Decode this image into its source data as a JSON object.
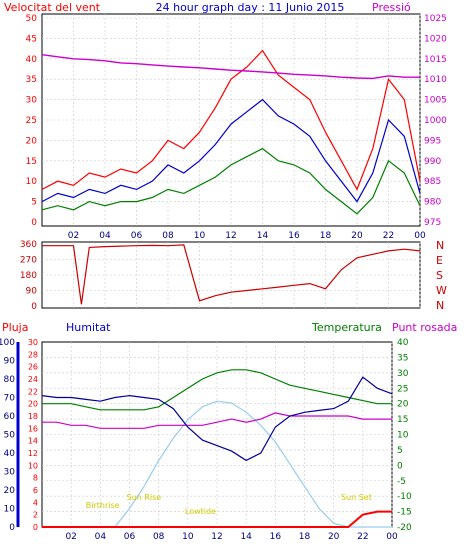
{
  "header": {
    "left_label": "Velocitat del vent",
    "title": "24 hour graph day : 11 Junio 2015",
    "right_label": "Pressió"
  },
  "colors": {
    "wind_max": "#ff0000",
    "wind_avg": "#0000cc",
    "wind_min": "#008000",
    "pressure": "#cc00cc",
    "direction": "#cc0000",
    "humidity": "#000099",
    "temperature": "#008000",
    "dewpoint": "#cc00cc",
    "rain": "#ff0000",
    "solar": "#99ccee",
    "sun_events": "#cccc00",
    "left_axis": "#ff0000",
    "hum_axis": "#0000cc",
    "temp_axis": "#008000"
  },
  "time_axis": {
    "labels": [
      "02",
      "04",
      "06",
      "08",
      "10",
      "12",
      "14",
      "16",
      "18",
      "20",
      "22",
      "00"
    ]
  },
  "chart_data": [
    {
      "type": "line",
      "panel": "wind",
      "x_unit": "hour",
      "xlim": [
        0,
        24
      ],
      "ylabel": "Velocitat del vent",
      "ylim": [
        0,
        50
      ],
      "y_ticks": [
        "0",
        "5",
        "10",
        "15",
        "20",
        "25",
        "30",
        "35",
        "40",
        "45",
        "50"
      ],
      "y2label": "Pressió",
      "y2lim": [
        975,
        1025
      ],
      "y2_ticks": [
        "975",
        "980",
        "985",
        "990",
        "995",
        "1000",
        "1005",
        "1010",
        "1015",
        "1020",
        "1025"
      ],
      "x": [
        0,
        1,
        2,
        3,
        4,
        5,
        6,
        7,
        8,
        9,
        10,
        11,
        12,
        13,
        14,
        15,
        16,
        17,
        18,
        19,
        20,
        21,
        22,
        23,
        24
      ],
      "series": [
        {
          "role": "max",
          "values": [
            8,
            10,
            9,
            12,
            11,
            13,
            12,
            15,
            20,
            18,
            22,
            28,
            35,
            38,
            42,
            36,
            33,
            30,
            22,
            15,
            8,
            18,
            35,
            30,
            10
          ]
        },
        {
          "role": "avg",
          "values": [
            5,
            7,
            6,
            8,
            7,
            9,
            8,
            10,
            14,
            12,
            15,
            19,
            24,
            27,
            30,
            26,
            24,
            21,
            15,
            10,
            5,
            12,
            25,
            21,
            7
          ]
        },
        {
          "role": "min",
          "values": [
            3,
            4,
            3,
            5,
            4,
            5,
            5,
            6,
            8,
            7,
            9,
            11,
            14,
            16,
            18,
            15,
            14,
            12,
            8,
            5,
            2,
            6,
            15,
            12,
            4
          ]
        },
        {
          "role": "pressure",
          "values": [
            1016,
            1015.5,
            1015,
            1014.8,
            1014.5,
            1014,
            1013.8,
            1013.5,
            1013.2,
            1013,
            1012.8,
            1012.5,
            1012.2,
            1012,
            1011.8,
            1011.5,
            1011.2,
            1011,
            1010.8,
            1010.5,
            1010.3,
            1010.2,
            1010.8,
            1010.5,
            1010.5
          ]
        }
      ],
      "grid": true
    },
    {
      "type": "line",
      "panel": "wind_direction",
      "x_unit": "hour",
      "xlim": [
        0,
        24
      ],
      "ylim": [
        0,
        360
      ],
      "y_ticks": [
        "0",
        "90",
        "180",
        "270",
        "360"
      ],
      "y2_ticks": [
        "N",
        "W",
        "S",
        "E",
        "N"
      ],
      "x": [
        0,
        1,
        2,
        2.5,
        3,
        4,
        5,
        6,
        7,
        8,
        9,
        10,
        11,
        12,
        13,
        14,
        15,
        16,
        17,
        18,
        19,
        20,
        21,
        22,
        23,
        24
      ],
      "series": [
        {
          "role": "direction",
          "values": [
            350,
            350,
            350,
            10,
            340,
            345,
            348,
            350,
            352,
            350,
            355,
            30,
            60,
            80,
            90,
            100,
            110,
            120,
            130,
            100,
            210,
            280,
            300,
            320,
            330,
            320
          ]
        }
      ],
      "grid": true
    },
    {
      "type": "line",
      "panel": "temp_hum_rain",
      "x_unit": "hour",
      "xlim": [
        0,
        24
      ],
      "labels": {
        "rain": "Pluja",
        "humidity": "Humitat",
        "temperature": "Temperatura",
        "dewpoint": "Punt rosada"
      },
      "y_rain_lim": [
        0,
        30
      ],
      "y_rain_ticks": [
        "0",
        "2",
        "4",
        "6",
        "8",
        "10",
        "12",
        "14",
        "16",
        "18",
        "20",
        "22",
        "24",
        "26",
        "28",
        "30"
      ],
      "y_hum_lim": [
        0,
        100
      ],
      "y_hum_ticks": [
        "0",
        "10",
        "20",
        "30",
        "40",
        "50",
        "60",
        "70",
        "80",
        "90",
        "100"
      ],
      "y_temp_lim": [
        -20,
        40
      ],
      "y_temp_ticks": [
        "-20",
        "-15",
        "-10",
        "-5",
        "0",
        "5",
        "10",
        "15",
        "20",
        "25",
        "30",
        "35",
        "40"
      ],
      "x": [
        0,
        1,
        2,
        3,
        4,
        5,
        6,
        7,
        8,
        9,
        10,
        11,
        12,
        13,
        14,
        15,
        16,
        17,
        18,
        19,
        20,
        21,
        22,
        23,
        24
      ],
      "series": [
        {
          "role": "humidity",
          "values": [
            71,
            70,
            70,
            69,
            68,
            70,
            71,
            70,
            69,
            64,
            54,
            47,
            44,
            41,
            36,
            40,
            54,
            60,
            62,
            63,
            64,
            68,
            81,
            75,
            72
          ]
        },
        {
          "role": "temperature",
          "values": [
            20,
            20,
            20,
            19,
            18,
            18,
            18,
            18,
            19,
            22,
            25,
            28,
            30,
            31,
            31,
            30,
            28,
            26,
            25,
            24,
            23,
            22,
            21,
            20,
            20
          ]
        },
        {
          "role": "dewpoint",
          "values": [
            14,
            14,
            13,
            13,
            12,
            12,
            12,
            12,
            13,
            13,
            13,
            13,
            14,
            15,
            14,
            15,
            17,
            16,
            16,
            16,
            16,
            16,
            15,
            15,
            15
          ]
        },
        {
          "role": "rain",
          "values": [
            0,
            0,
            0,
            0,
            0,
            0,
            0,
            0,
            0,
            0,
            0,
            0,
            0,
            0,
            0,
            0,
            0,
            0,
            0,
            0,
            0,
            0,
            2,
            2.5,
            2.5
          ]
        },
        {
          "role": "solar",
          "values": [
            0,
            0,
            0,
            0,
            0,
            0,
            10,
            22,
            36,
            48,
            58,
            65,
            68,
            67,
            62,
            55,
            46,
            34,
            22,
            10,
            2,
            0,
            0,
            0,
            0
          ]
        }
      ],
      "annotations": [
        "Birthrise",
        "Sun Rise",
        "Lowtide",
        "Sun Set"
      ],
      "grid": true
    }
  ]
}
